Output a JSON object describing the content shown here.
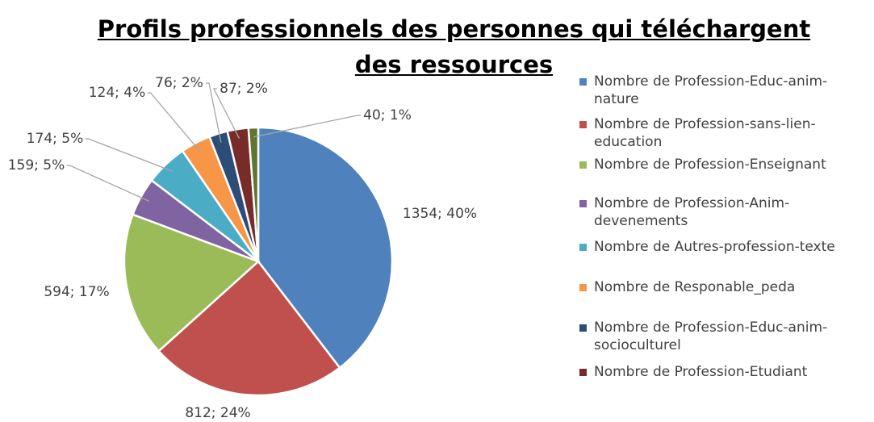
{
  "chart_data": {
    "type": "pie",
    "title": "Profils professionnels des personnes qui téléchargent des ressources",
    "categories": [
      "Nombre de Profession-Educ-anim-nature",
      "Nombre de Profession-sans-lien-education",
      "Nombre de Profession-Enseignant",
      "Nombre de Profession-Anim-devenements",
      "Nombre de Autres-profession-texte",
      "Nombre de Responable_peda",
      "Nombre de Profession-Educ-anim-socioculturel",
      "Nombre de Profession-Etudiant",
      null
    ],
    "values": [
      1354,
      812,
      594,
      159,
      174,
      124,
      76,
      87,
      40
    ],
    "value_labels": [
      "1354; 40%",
      "812; 24%",
      "594; 17%",
      "159; 5%",
      "174; 5%",
      "124; 4%",
      "76; 2%",
      "87; 2%",
      "40; 1%"
    ],
    "colors": [
      "#4f81bd",
      "#c0504d",
      "#9bbb59",
      "#8064a2",
      "#4bacc6",
      "#f79646",
      "#2c4d75",
      "#772c2a",
      "#5f7530"
    ],
    "legend": "right"
  }
}
